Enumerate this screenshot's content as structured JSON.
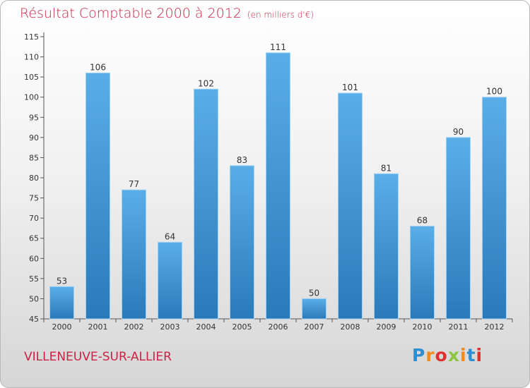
{
  "chart_data": {
    "type": "bar",
    "title": "Résultat Comptable 2000 à 2012",
    "subtitle": "(en milliers d'€)",
    "categories": [
      "2000",
      "2001",
      "2002",
      "2003",
      "2004",
      "2005",
      "2006",
      "2007",
      "2008",
      "2009",
      "2010",
      "2011",
      "2012"
    ],
    "values": [
      53,
      106,
      77,
      64,
      102,
      83,
      111,
      50,
      101,
      81,
      68,
      90,
      100
    ],
    "ylim": [
      45,
      115
    ],
    "yticks": [
      45,
      50,
      55,
      60,
      65,
      70,
      75,
      80,
      85,
      90,
      95,
      100,
      105,
      110,
      115
    ],
    "xlabel": "",
    "ylabel": "",
    "grid": false
  },
  "footer": {
    "city": "VILLENEUVE-SUR-ALLIER",
    "brand": "Proxiti",
    "brand_letters": [
      "P",
      "r",
      "o",
      "x",
      "i",
      "t",
      "i"
    ],
    "brand_colors": [
      "#2b8fd3",
      "#f28a1e",
      "#e0312f",
      "#8cc63f",
      "#f28a1e",
      "#2b8fd3",
      "#e0312f"
    ]
  },
  "colors": {
    "bar_light": "#5aaee8",
    "bar_dark": "#2a7ab9",
    "accent": "#cc2244"
  }
}
